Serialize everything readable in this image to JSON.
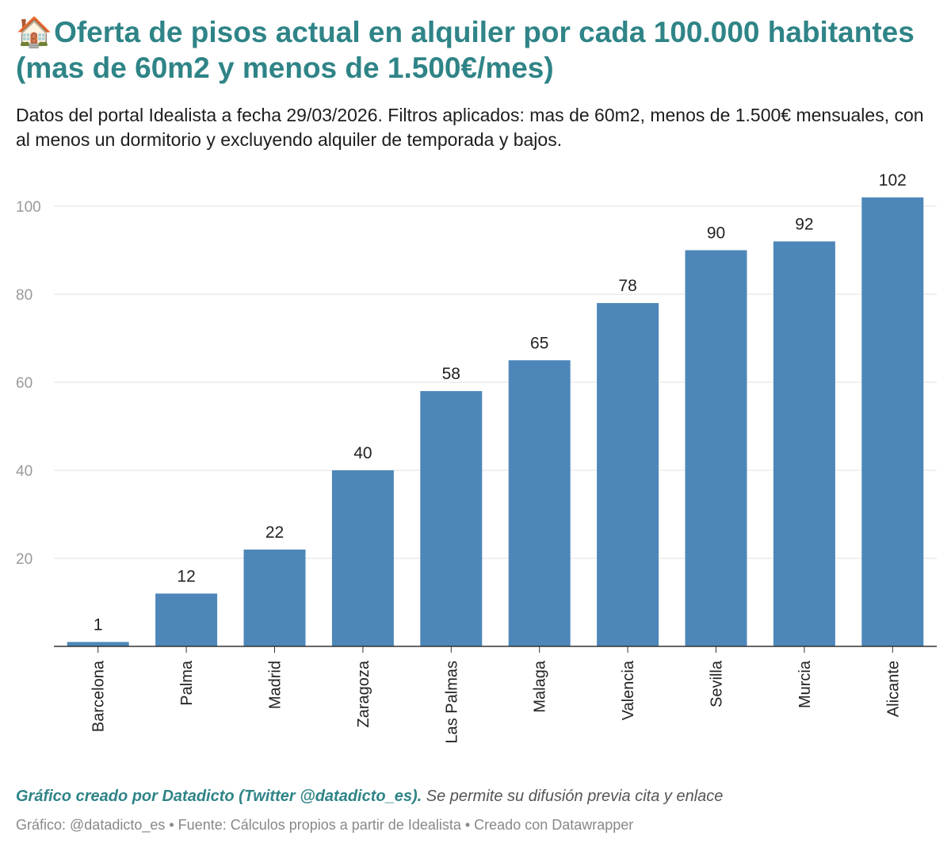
{
  "header": {
    "icon": "house-icon",
    "title": "Oferta de pisos actual en alquiler por cada 100.000 habitantes (mas de 60m2 y menos de 1.500€/mes)",
    "subtitle": "Datos del portal Idealista a fecha 29/03/2026. Filtros aplicados: mas de 60m2, menos de 1.500€ mensuales, con al menos un dormitorio y excluyendo alquiler de temporada y bajos."
  },
  "chart_data": {
    "type": "bar",
    "categories": [
      "Barcelona",
      "Palma",
      "Madrid",
      "Zaragoza",
      "Las Palmas",
      "Malaga",
      "Valencia",
      "Sevilla",
      "Murcia",
      "Alicante"
    ],
    "values": [
      1,
      12,
      22,
      40,
      58,
      65,
      78,
      90,
      92,
      102
    ],
    "title": "Oferta de pisos actual en alquiler por cada 100.000 habitantes (mas de 60m2 y menos de 1.500€/mes)",
    "xlabel": "",
    "ylabel": "",
    "ylim": [
      0,
      100
    ],
    "yticks": [
      20,
      40,
      60,
      80,
      100
    ],
    "grid": true,
    "data_labels": true,
    "bar_color": "#4d87b9"
  },
  "notes": {
    "strong": "Gráfico creado por Datadicto (Twitter @datadicto_es).",
    "rest": "Se permite su difusión previa cita y enlace"
  },
  "footer": {
    "text": "Gráfico: @datadicto_es • Fuente: Cálculos propios a partir de Idealista • Creado con Datawrapper"
  },
  "colors": {
    "title": "#2f8487",
    "bar": "#4d87b9",
    "grid": "#e2e2e2",
    "axis": "#333333"
  }
}
